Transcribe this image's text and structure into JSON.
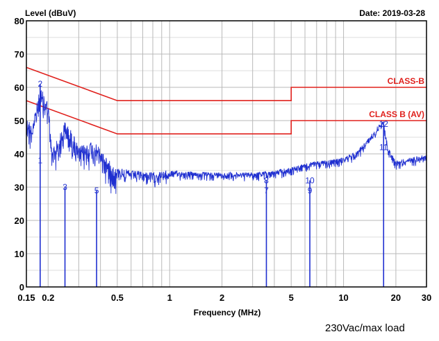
{
  "caption": "230Vac/max load",
  "chart_data": {
    "type": "line",
    "title": "",
    "ylabel": "Level (dBuV)",
    "xlabel": "Frequency (MHz)",
    "date_label": "Date: 2019-03-28",
    "x_scale": "log",
    "xlim": [
      0.15,
      30
    ],
    "ylim": [
      0,
      80
    ],
    "x_ticks": [
      0.15,
      0.2,
      0.5,
      1,
      2,
      5,
      10,
      20,
      30
    ],
    "x_tick_labels": [
      "0.15",
      "0.2",
      "0.5",
      "1",
      "2",
      "5",
      "10",
      "20",
      "30"
    ],
    "y_ticks": [
      0,
      10,
      20,
      30,
      40,
      50,
      60,
      70,
      80
    ],
    "y_tick_labels": [
      "0",
      "10",
      "20",
      "30",
      "40",
      "50",
      "60",
      "70",
      "80"
    ],
    "grid": true,
    "colors": {
      "limit": "#e0201c",
      "trace": "#1f2fd0",
      "grid": "#b9b9b9"
    },
    "limits": [
      {
        "name": "CLASS-B",
        "x": [
          0.15,
          0.5,
          0.5,
          5,
          5,
          30
        ],
        "y": [
          66,
          56,
          56,
          56,
          60,
          60
        ]
      },
      {
        "name": "CLASS B (AV)",
        "x": [
          0.15,
          0.5,
          0.5,
          5,
          5,
          30
        ],
        "y": [
          56,
          46,
          46,
          46,
          50,
          50
        ]
      }
    ],
    "trace_envelope": {
      "x": [
        0.15,
        0.16,
        0.17,
        0.18,
        0.19,
        0.2,
        0.21,
        0.23,
        0.25,
        0.28,
        0.3,
        0.35,
        0.4,
        0.45,
        0.5,
        0.6,
        0.8,
        1,
        1.5,
        2,
        3,
        4,
        5,
        6,
        7,
        8,
        10,
        12,
        14,
        15,
        16,
        17,
        18,
        20,
        25,
        30
      ],
      "y": [
        52,
        49,
        54,
        60,
        58,
        56,
        42,
        45,
        50,
        46,
        42,
        44,
        42,
        38,
        36,
        35,
        34.5,
        35,
        34.5,
        34.5,
        34.5,
        35,
        36,
        37,
        38,
        38,
        39,
        41,
        45,
        47,
        49,
        50,
        42,
        38,
        39,
        40
      ]
    },
    "markers": [
      {
        "label": "1",
        "x": 0.18,
        "y": 38
      },
      {
        "label": "2",
        "x": 0.18,
        "y": 61
      },
      {
        "label": "3",
        "x": 0.25,
        "y": 30
      },
      {
        "label": "5",
        "x": 0.38,
        "y": 29
      },
      {
        "label": "7",
        "x": 3.6,
        "y": 29
      },
      {
        "label": "8",
        "x": 3.6,
        "y": 32
      },
      {
        "label": "9",
        "x": 6.4,
        "y": 29
      },
      {
        "label": "10",
        "x": 6.4,
        "y": 32
      },
      {
        "label": "11",
        "x": 17,
        "y": 42
      },
      {
        "label": "12",
        "x": 17,
        "y": 49
      }
    ]
  }
}
